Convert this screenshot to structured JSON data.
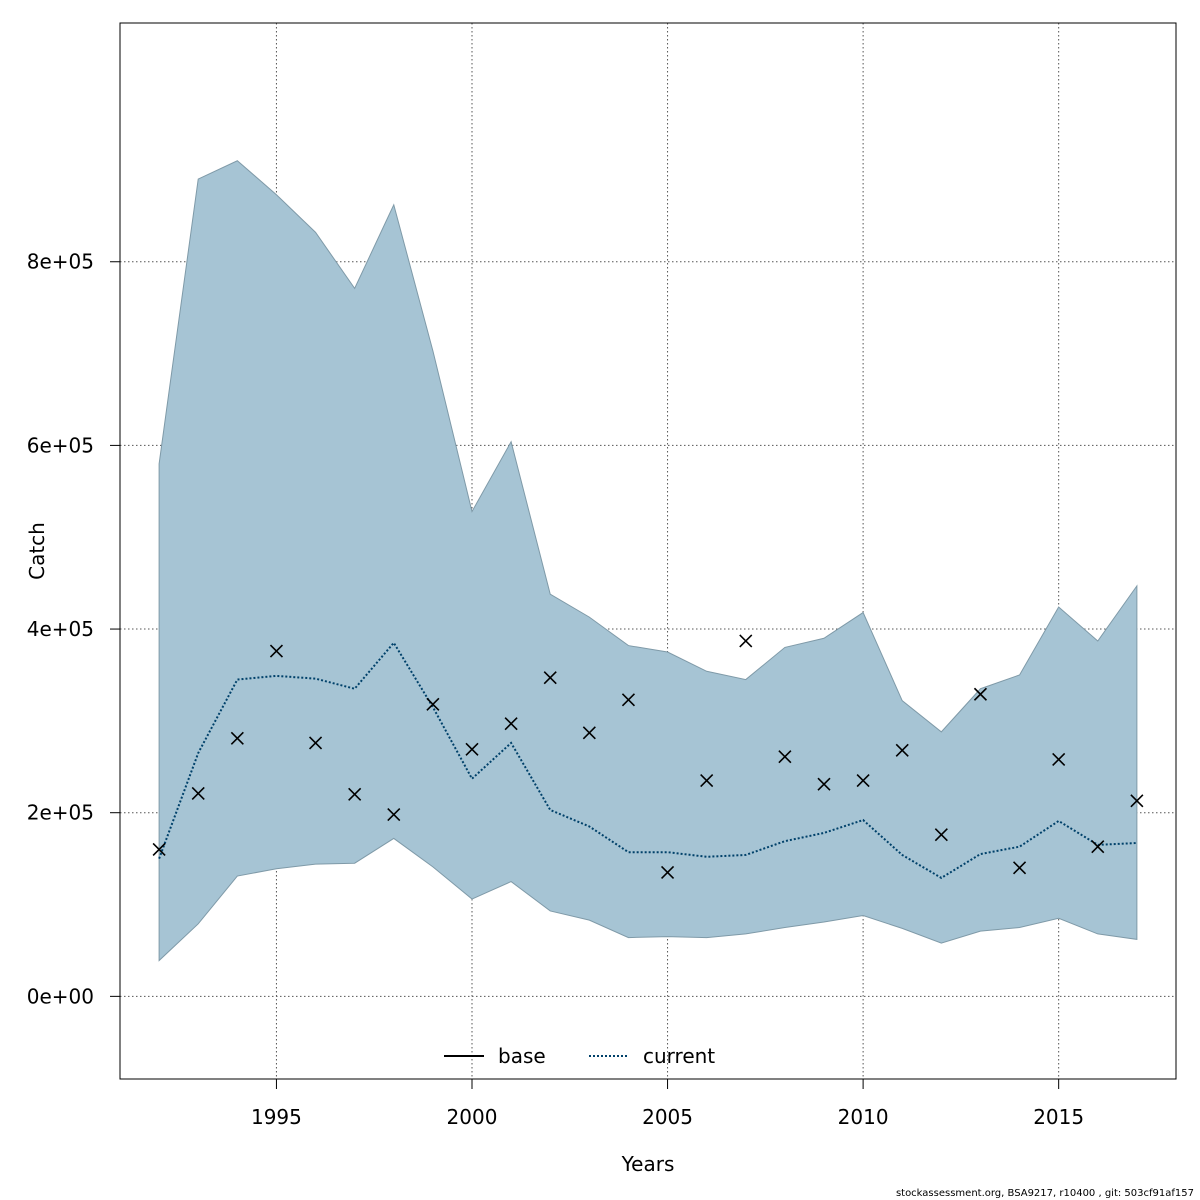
{
  "chart_data": {
    "type": "line",
    "title": "",
    "xlabel": "Years",
    "ylabel": "Catch",
    "xlim": [
      1991,
      2018
    ],
    "ylim": [
      -90000,
      1060000
    ],
    "x_ticks": [
      1995,
      2000,
      2005,
      2010,
      2015
    ],
    "x_tick_labels": [
      "1995",
      "2000",
      "2005",
      "2010",
      "2015"
    ],
    "y_ticks": [
      0,
      200000,
      400000,
      600000,
      800000
    ],
    "y_tick_labels": [
      "0e+00",
      "2e+05",
      "4e+05",
      "6e+05",
      "8e+05"
    ],
    "grid": true,
    "legend": {
      "position": "bottom-center",
      "entries": [
        {
          "name": "base",
          "style": "solid",
          "color": "#000000"
        },
        {
          "name": "current",
          "style": "dotted",
          "color": "#00416a"
        }
      ]
    },
    "x": [
      1992,
      1993,
      1994,
      1995,
      1996,
      1997,
      1998,
      1999,
      2000,
      2001,
      2002,
      2003,
      2004,
      2005,
      2006,
      2007,
      2008,
      2009,
      2010,
      2011,
      2012,
      2013,
      2014,
      2015,
      2016,
      2017
    ],
    "band": {
      "color": "#a6c4d4",
      "upper": [
        580000,
        890000,
        910000,
        873000,
        832000,
        771000,
        862000,
        703000,
        528000,
        604000,
        438000,
        413000,
        382000,
        375000,
        354000,
        345000,
        380000,
        390000,
        418000,
        322000,
        288000,
        335000,
        350000,
        424000,
        387000,
        447000
      ],
      "lower": [
        39000,
        79000,
        131000,
        139000,
        144000,
        145000,
        172000,
        141000,
        106000,
        125000,
        93000,
        83000,
        64000,
        65000,
        64000,
        68000,
        75000,
        81000,
        88000,
        74000,
        58000,
        71000,
        75000,
        85000,
        68000,
        62000
      ]
    },
    "series": [
      {
        "name": "current",
        "style": "dotted",
        "color": "#00416a",
        "values": [
          150000,
          265000,
          345000,
          349000,
          346000,
          335000,
          385000,
          315000,
          237000,
          276000,
          203000,
          185000,
          157000,
          157000,
          152000,
          154000,
          169000,
          178000,
          192000,
          154000,
          129000,
          155000,
          163000,
          191000,
          165000,
          167000
        ]
      }
    ],
    "observed": {
      "marker": "x",
      "color": "#000000",
      "values": [
        160000,
        221000,
        281000,
        376000,
        276000,
        220000,
        198000,
        318000,
        269000,
        297000,
        347000,
        287000,
        323000,
        135000,
        235000,
        387000,
        261000,
        231000,
        235000,
        268000,
        176000,
        329000,
        140000,
        258000,
        163000,
        213000
      ]
    }
  },
  "footnote": "stockassessment.org, BSA9217, r10400 , git: 503cf91af157"
}
